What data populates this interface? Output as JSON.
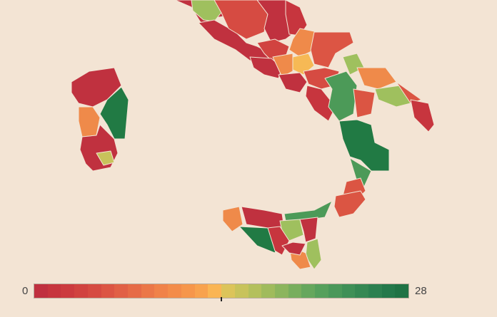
{
  "legend": {
    "min_label": "0",
    "max_label": "28",
    "marker_value": 14,
    "colors": [
      "#c0303f",
      "#c7353e",
      "#cc3b3f",
      "#d14340",
      "#d64b42",
      "#dc5544",
      "#e16046",
      "#e66b47",
      "#eb7748",
      "#f08249",
      "#f38c4a",
      "#f6964b",
      "#f8a24e",
      "#fab554",
      "#dcc45a",
      "#c8c35b",
      "#b4c05c",
      "#a0bb5c",
      "#8cb55d",
      "#78ae5d",
      "#66a75d",
      "#56a05c",
      "#4a985a",
      "#3f9057",
      "#358853",
      "#2c8050",
      "#24794b",
      "#1f7345"
    ]
  },
  "palette": {
    "red": "#c0313f",
    "red_orange": "#db5543",
    "orange": "#ef8a4a",
    "yellow": "#f6b955",
    "light_green": "#9fc05e",
    "green": "#4c9a58",
    "dark_green": "#217a44",
    "background": "#f3e4d4"
  }
}
